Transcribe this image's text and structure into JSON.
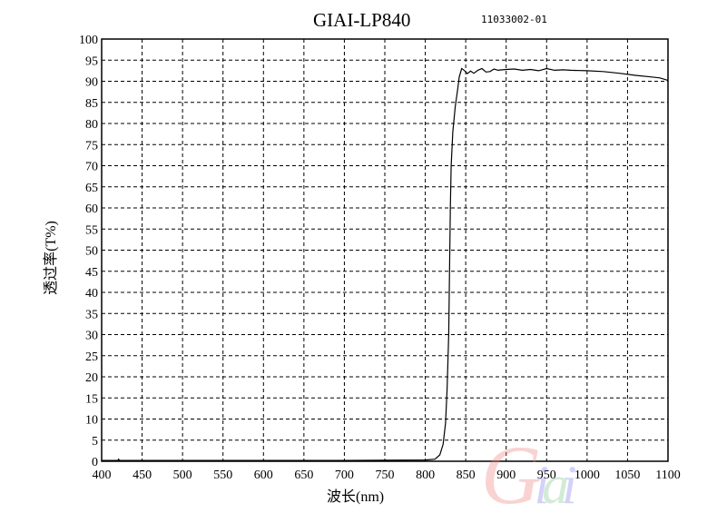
{
  "chart_data": {
    "type": "line",
    "title": "GIAI-LP840",
    "subtitle": "11033002-01",
    "xlabel": "波长(nm)",
    "ylabel": "透过率(T%)",
    "xlim": [
      400,
      1100
    ],
    "ylim": [
      0,
      100
    ],
    "xticks": [
      "400",
      "450",
      "500",
      "550",
      "600",
      "650",
      "700",
      "750",
      "800",
      "850",
      "900",
      "950",
      "1000",
      "1050",
      "1100"
    ],
    "yticks": [
      "0",
      "5",
      "10",
      "15",
      "20",
      "25",
      "30",
      "35",
      "40",
      "45",
      "50",
      "55",
      "60",
      "65",
      "70",
      "75",
      "80",
      "85",
      "90",
      "95",
      "100"
    ],
    "grid": true,
    "grid_style": "dashed",
    "line_color": "#000000",
    "series": [
      {
        "x": [
          400,
          420,
          421,
          422,
          500,
          700,
          800,
          812,
          818,
          822,
          825,
          827,
          829,
          830,
          831,
          832,
          834,
          837,
          840,
          842,
          845,
          848,
          852,
          856,
          860,
          865,
          870,
          875,
          880,
          885,
          890,
          895,
          900,
          910,
          920,
          930,
          940,
          950,
          960,
          970,
          980,
          1000,
          1020,
          1040,
          1060,
          1080,
          1090,
          1100
        ],
        "y": [
          0.2,
          0.2,
          0.5,
          0.2,
          0.2,
          0.2,
          0.3,
          0.5,
          1.5,
          4,
          9,
          17,
          30,
          45,
          60,
          70,
          78,
          84,
          88,
          91,
          93,
          92.6,
          91.8,
          92.4,
          91.9,
          92.6,
          93,
          92.2,
          92.3,
          92.9,
          92.6,
          92.7,
          92.8,
          92.9,
          92.6,
          92.8,
          92.5,
          93,
          92.6,
          92.7,
          92.6,
          92.5,
          92.3,
          91.9,
          91.4,
          91.0,
          90.8,
          90.2
        ]
      }
    ]
  },
  "watermark": {
    "text": "Giai",
    "colors": [
      "#f08080",
      "#8080f0",
      "#80c890",
      "#8080f0"
    ]
  }
}
